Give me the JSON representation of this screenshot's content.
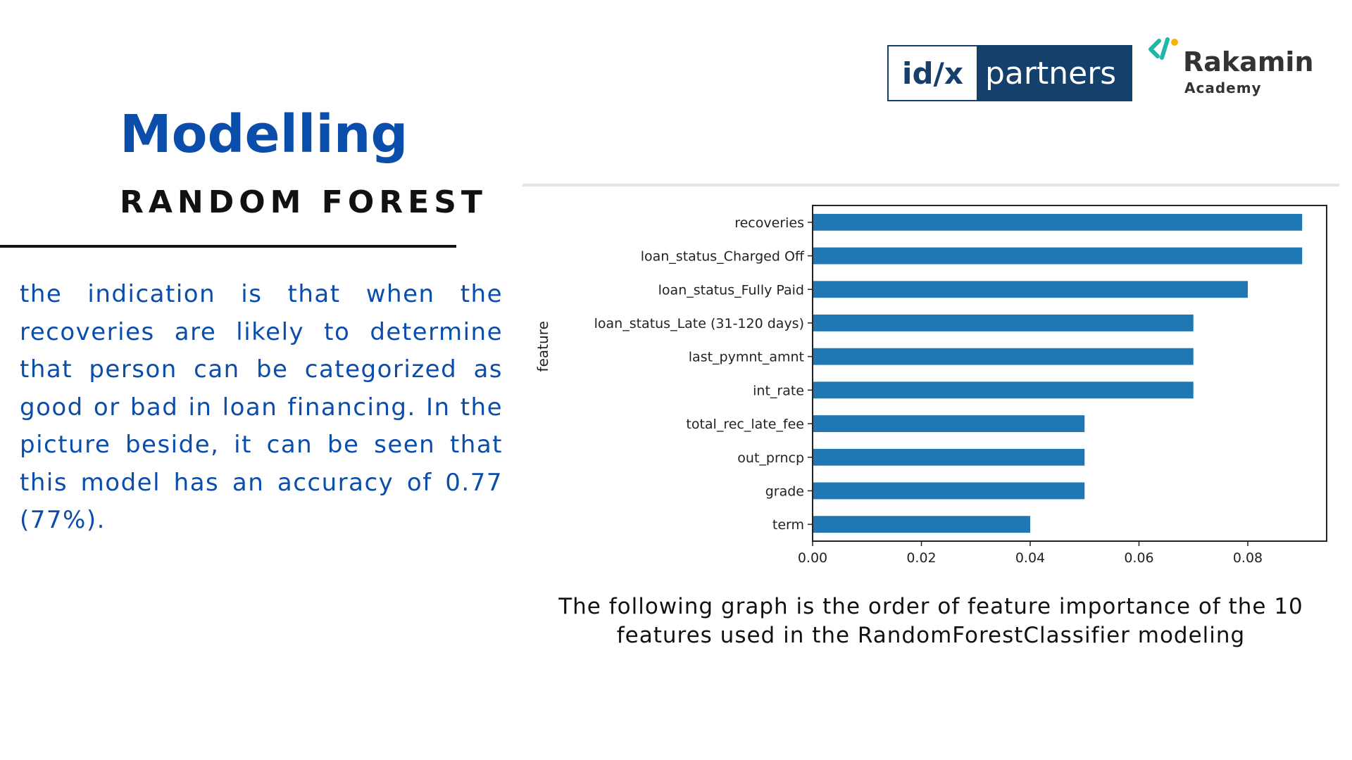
{
  "logos": {
    "idx_left": "id/x",
    "idx_right": "partners",
    "rakamin_name": "Rakamin",
    "rakamin_sub": "Academy",
    "colors": {
      "idx": "#14406b",
      "rakamin_green": "#1fb8a6",
      "rakamin_yellow": "#f4b400"
    }
  },
  "slide": {
    "title": "Modelling",
    "subtitle": "RANDOM FOREST",
    "description": "the indication is that when the recoveries are likely to determine that person can be categorized as good or bad in loan financing. In the picture beside, it can be seen that this model has an accuracy of 0.77 (77%).",
    "caption": "The following graph is the order of feature importance of the 10 features used in the RandomForestClassifier modeling",
    "accent_color": "#0a4dab"
  },
  "chart_data": {
    "type": "bar",
    "orientation": "horizontal",
    "categories": [
      "recoveries",
      "loan_status_Charged Off",
      "loan_status_Fully Paid",
      "loan_status_Late (31-120 days)",
      "last_pymnt_amnt",
      "int_rate",
      "total_rec_late_fee",
      "out_prncp",
      "grade",
      "term"
    ],
    "values": [
      0.09,
      0.09,
      0.08,
      0.07,
      0.07,
      0.07,
      0.05,
      0.05,
      0.05,
      0.04
    ],
    "xticks": [
      "0.00",
      "0.02",
      "0.04",
      "0.06",
      "0.08"
    ],
    "xlim": [
      0,
      0.0945
    ],
    "ylabel": "feature",
    "xlabel": "",
    "grid": false,
    "bar_color": "#1f77b4"
  }
}
